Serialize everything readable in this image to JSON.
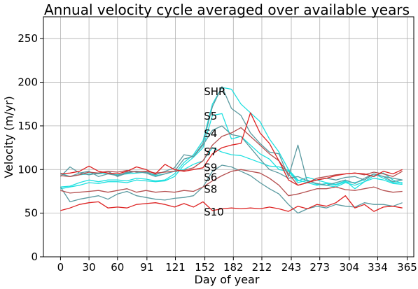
{
  "chart_data": {
    "type": "line",
    "title": "Annual velocity cycle averaged over available years",
    "xlabel": "Day of year",
    "ylabel": "Velocity (m/yr)",
    "xlim": [
      -18,
      372
    ],
    "ylim": [
      0,
      275
    ],
    "xticks": [
      0,
      30,
      60,
      91,
      121,
      152,
      182,
      212,
      243,
      273,
      304,
      334,
      365
    ],
    "yticks": [
      0,
      50,
      100,
      150,
      200,
      250
    ],
    "grid": true,
    "x": [
      0,
      10,
      20,
      30,
      40,
      50,
      60,
      70,
      80,
      90,
      100,
      110,
      120,
      130,
      140,
      150,
      160,
      170,
      180,
      190,
      200,
      210,
      220,
      230,
      240,
      250,
      260,
      270,
      280,
      290,
      300,
      310,
      320,
      330,
      340,
      350,
      360
    ],
    "series": [
      {
        "color": "#1fe0e0",
        "values": [
          80,
          81,
          85,
          88,
          86,
          88,
          88,
          87,
          90,
          89,
          87,
          88,
          95,
          108,
          117,
          133,
          175,
          194,
          192,
          175,
          165,
          155,
          135,
          120,
          100,
          88,
          85,
          82,
          84,
          82,
          86,
          85,
          88,
          95,
          90,
          85,
          85
        ]
      },
      {
        "color": "#1fe0e0",
        "values": [
          78,
          80,
          82,
          85,
          84,
          86,
          86,
          85,
          88,
          87,
          86,
          87,
          92,
          105,
          114,
          125,
          162,
          164,
          135,
          138,
          128,
          118,
          112,
          100,
          98,
          85,
          88,
          83,
          82,
          80,
          85,
          82,
          86,
          90,
          88,
          84,
          83
        ]
      },
      {
        "color": "#1fe0e0",
        "values": [
          96,
          92,
          94,
          95,
          95,
          96,
          94,
          95,
          96,
          97,
          93,
          95,
          98,
          100,
          106,
          110,
          125,
          120,
          117,
          116,
          112,
          108,
          104,
          103,
          99,
          87,
          91,
          88,
          85,
          83,
          87,
          78,
          86,
          93,
          96,
          88,
          84
        ]
      },
      {
        "color": "#5a9aa0",
        "values": [
          92,
          103,
          96,
          94,
          96,
          98,
          92,
          96,
          98,
          97,
          94,
          98,
          102,
          117,
          115,
          130,
          172,
          195,
          170,
          162,
          142,
          130,
          120,
          118,
          92,
          128,
          85,
          88,
          90,
          88,
          91,
          92,
          88,
          95,
          92,
          86,
          88
        ]
      },
      {
        "color": "#5a9aa0",
        "values": [
          95,
          92,
          96,
          98,
          92,
          95,
          93,
          97,
          98,
          96,
          92,
          95,
          98,
          112,
          115,
          128,
          145,
          150,
          140,
          138,
          125,
          112,
          100,
          96,
          90,
          92,
          87,
          84,
          82,
          85,
          88,
          84,
          90,
          95,
          92,
          90,
          88
        ]
      },
      {
        "color": "#5a9aa0",
        "values": [
          80,
          63,
          66,
          68,
          70,
          66,
          72,
          75,
          70,
          68,
          66,
          65,
          67,
          68,
          70,
          80,
          98,
          105,
          103,
          98,
          93,
          85,
          78,
          72,
          60,
          50,
          55,
          58,
          56,
          60,
          58,
          57,
          62,
          60,
          60,
          58,
          62
        ]
      },
      {
        "color": "#b55050",
        "values": [
          93,
          92,
          94,
          97,
          96,
          98,
          97,
          99,
          97,
          98,
          96,
          97,
          98,
          99,
          102,
          110,
          128,
          138,
          142,
          148,
          138,
          128,
          118,
          110,
          95,
          82,
          85,
          90,
          92,
          94,
          95,
          96,
          94,
          97,
          95,
          92,
          98
        ]
      },
      {
        "color": "#b55050",
        "values": [
          76,
          73,
          74,
          75,
          76,
          74,
          76,
          78,
          74,
          76,
          74,
          75,
          74,
          76,
          75,
          80,
          87,
          93,
          98,
          100,
          98,
          96,
          90,
          82,
          70,
          72,
          75,
          78,
          78,
          80,
          77,
          76,
          78,
          80,
          76,
          74,
          75
        ]
      },
      {
        "color": "#dd2222",
        "values": [
          95,
          96,
          98,
          104,
          98,
          96,
          95,
          98,
          103,
          100,
          95,
          106,
          100,
          98,
          100,
          102,
          118,
          125,
          128,
          130,
          165,
          142,
          130,
          110,
          88,
          82,
          85,
          88,
          90,
          93,
          95,
          96,
          95,
          92,
          98,
          95,
          100
        ]
      },
      {
        "color": "#dd2222",
        "values": [
          53,
          56,
          60,
          62,
          63,
          56,
          57,
          56,
          60,
          61,
          62,
          60,
          57,
          61,
          57,
          63,
          53,
          55,
          56,
          55,
          56,
          55,
          57,
          55,
          52,
          58,
          55,
          60,
          58,
          62,
          70,
          56,
          60,
          52,
          57,
          58,
          56
        ]
      }
    ],
    "annotations": [
      {
        "text": "SHR",
        "x": 151,
        "y": 190
      },
      {
        "text": "S5",
        "x": 151,
        "y": 162
      },
      {
        "text": "S4",
        "x": 151,
        "y": 142
      },
      {
        "text": "S7",
        "x": 151,
        "y": 121
      },
      {
        "text": "S9",
        "x": 151,
        "y": 103
      },
      {
        "text": "S6",
        "x": 151,
        "y": 92
      },
      {
        "text": "S8",
        "x": 151,
        "y": 78
      },
      {
        "text": "S10",
        "x": 151,
        "y": 52
      }
    ]
  }
}
